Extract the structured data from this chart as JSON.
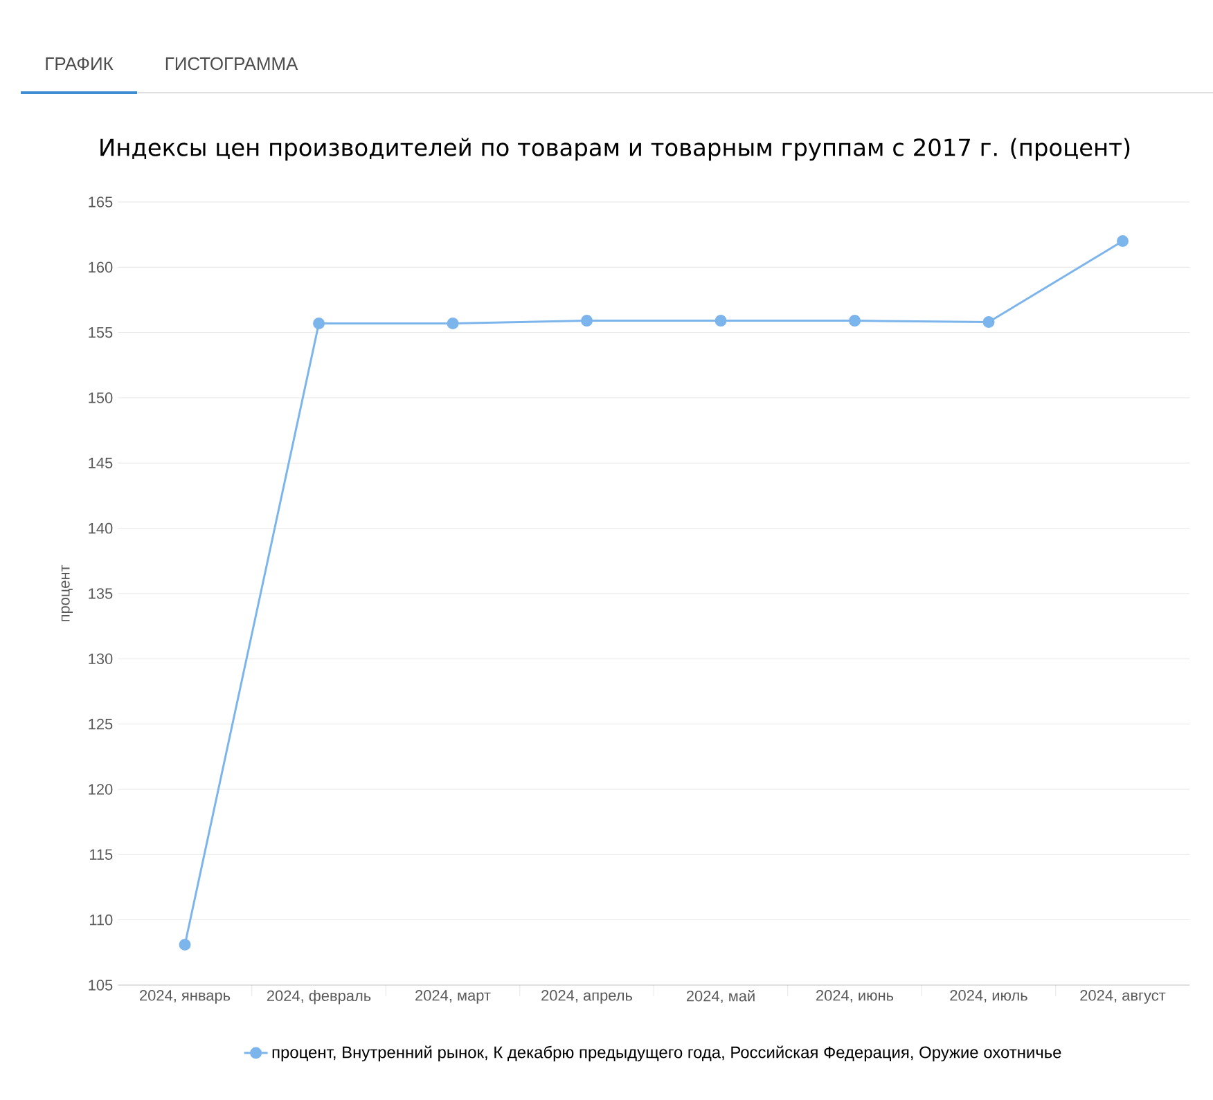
{
  "chart_data": {
    "type": "line",
    "title": "Индексы цен производителей по товарам и товарным группам с 2017 г. (процент)",
    "ylabel": "процент",
    "annotations": [
      "ГРАФИК",
      "ГИСТОГРАММА"
    ],
    "categories": [
      "2024, январь",
      "2024, февраль",
      "2024, март",
      "2024, апрель",
      "2024, май",
      "2024, июнь",
      "2024, июль",
      "2024, август"
    ],
    "series": [
      {
        "name": "процент, Внутренний рынок, К декабрю предыдущего года, Российская Федерация, Оружие охотничье",
        "color": "#7cb5ec",
        "values": [
          108.1,
          155.7,
          155.7,
          155.9,
          155.9,
          155.9,
          155.8,
          162.0
        ]
      }
    ],
    "ylim": [
      105,
      165
    ],
    "yticks": [
      105,
      110,
      115,
      120,
      125,
      130,
      135,
      140,
      145,
      150,
      155,
      160,
      165
    ],
    "grid": "y",
    "legend": "bottom",
    "marker": "circle",
    "line_style": "solid"
  }
}
